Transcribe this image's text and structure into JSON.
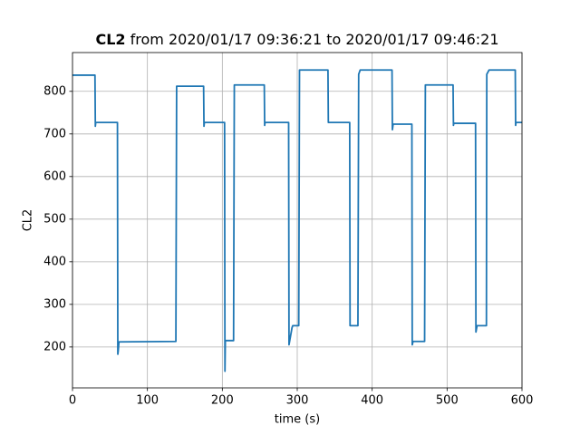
{
  "chart_data": {
    "type": "line",
    "title_variable": "CL2",
    "title": "from 2020/01/17 09:36:21 to 2020/01/17 09:46:21",
    "x_label": "time (s)",
    "y_label": "CL2",
    "x": [
      0,
      30,
      30.5,
      31,
      60,
      60.5,
      61,
      62,
      138,
      139,
      175,
      175.5,
      176,
      203,
      203.5,
      204,
      206,
      215,
      216,
      256,
      256.5,
      257,
      288.5,
      289,
      293,
      294,
      302,
      303,
      341,
      341.5,
      370,
      370.5,
      381,
      382,
      384,
      426.5,
      427,
      428,
      453,
      453.5,
      454.5,
      470,
      471,
      508,
      508.5,
      509,
      538,
      538.5,
      540,
      552.5,
      553,
      556,
      591,
      591.5,
      592,
      600
    ],
    "values": [
      838,
      838,
      718,
      727,
      727,
      183,
      190,
      212,
      213,
      812,
      812,
      718,
      727,
      727,
      143,
      215,
      215,
      215,
      815,
      815,
      720,
      727,
      727,
      205,
      245,
      250,
      250,
      850,
      850,
      727,
      727,
      250,
      250,
      840,
      850,
      850,
      710,
      723,
      723,
      205,
      213,
      213,
      815,
      815,
      720,
      725,
      725,
      235,
      250,
      250,
      840,
      850,
      850,
      720,
      727,
      727
    ],
    "color": "#1f77b4",
    "xlim": [
      0,
      600
    ],
    "xticks": [
      0,
      100,
      200,
      300,
      400,
      500,
      600
    ],
    "ylim": [
      104,
      891
    ],
    "yticks": [
      200,
      300,
      400,
      500,
      600,
      700,
      800
    ],
    "grid": true
  }
}
